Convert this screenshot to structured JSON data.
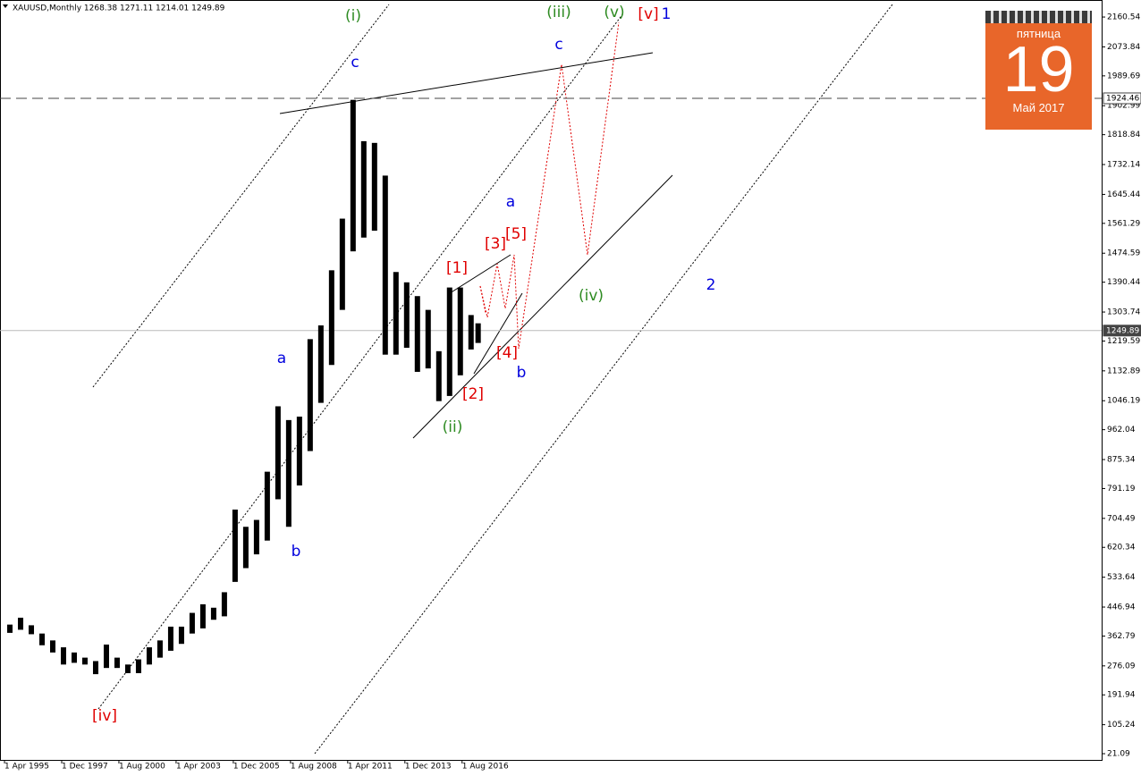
{
  "chart_data": {
    "type": "range",
    "title": "XAUUSD,Monthly  1268.38 1271.11 1214.01 1249.89",
    "x": [
      1995.5,
      1996.0,
      1996.5,
      1997.0,
      1997.5,
      1998.0,
      1998.5,
      1999.0,
      1999.5,
      2000.0,
      2000.5,
      2001.0,
      2001.5,
      2002.0,
      2002.5,
      2003.0,
      2003.5,
      2004.0,
      2004.5,
      2005.0,
      2005.5,
      2006.0,
      2006.5,
      2007.0,
      2007.5,
      2008.0,
      2008.5,
      2009.0,
      2009.5,
      2010.0,
      2010.5,
      2011.0,
      2011.5,
      2012.0,
      2012.5,
      2013.0,
      2013.5,
      2014.0,
      2014.5,
      2015.0,
      2015.5,
      2016.0,
      2016.5,
      2017.0,
      2017.33
    ],
    "high": [
      396,
      416,
      394,
      370,
      350,
      330,
      315,
      300,
      290,
      338,
      300,
      280,
      295,
      330,
      350,
      390,
      390,
      430,
      455,
      445,
      490,
      730,
      680,
      700,
      840,
      1030,
      990,
      1000,
      1225,
      1265,
      1425,
      1575,
      1920,
      1800,
      1795,
      1700,
      1420,
      1390,
      1350,
      1310,
      1190,
      1375,
      1375,
      1295,
      1271
    ],
    "low": [
      372,
      381,
      368,
      336,
      315,
      280,
      285,
      280,
      252,
      270,
      270,
      255,
      255,
      280,
      300,
      320,
      340,
      370,
      385,
      410,
      420,
      520,
      560,
      600,
      640,
      760,
      680,
      800,
      900,
      1040,
      1150,
      1310,
      1480,
      1520,
      1540,
      1180,
      1180,
      1200,
      1130,
      1140,
      1045,
      1060,
      1120,
      1195,
      1214
    ],
    "color": "#000000",
    "xlim": [
      1995.04,
      2046.4
    ],
    "xticks": [
      {
        "value": 1995.25,
        "label": "1 Apr 1995"
      },
      {
        "value": 1997.917,
        "label": "1 Dec 1997"
      },
      {
        "value": 2000.583,
        "label": "1 Aug 2000"
      },
      {
        "value": 2003.25,
        "label": "1 Apr 2003"
      },
      {
        "value": 2005.917,
        "label": "1 Dec 2005"
      },
      {
        "value": 2008.583,
        "label": "1 Aug 2008"
      },
      {
        "value": 2011.25,
        "label": "1 Apr 2011"
      },
      {
        "value": 2013.917,
        "label": "1 Dec 2013"
      },
      {
        "value": 2016.583,
        "label": "1 Aug 2016"
      }
    ],
    "ylim": [
      3,
      2210
    ],
    "yticks": [
      2160.54,
      2073.84,
      1989.69,
      1902.99,
      1818.84,
      1732.14,
      1645.44,
      1561.29,
      1474.59,
      1390.44,
      1303.74,
      1219.59,
      1132.89,
      1046.19,
      962.04,
      875.34,
      791.19,
      704.49,
      620.34,
      533.64,
      446.94,
      362.79,
      276.09,
      191.94,
      105.24,
      21.09
    ],
    "hlines": [
      {
        "value": 1924.46,
        "dashed": true
      },
      {
        "value": 1249.89,
        "dashed": false
      }
    ],
    "annotations": [
      {
        "text": "(i)",
        "color": "#2e8b22"
      },
      {
        "text": "c",
        "color": "#0000dd"
      },
      {
        "text": "(iii)",
        "color": "#2e8b22"
      },
      {
        "text": "(v)",
        "color": "#2e8b22"
      },
      {
        "text": "[v]",
        "color": "#e00000"
      },
      {
        "text": "1",
        "color": "#0000dd"
      },
      {
        "text": "c",
        "color": "#0000dd"
      },
      {
        "text": "a",
        "color": "#0000dd"
      },
      {
        "text": "[3]",
        "color": "#e00000"
      },
      {
        "text": "[5]",
        "color": "#e00000"
      },
      {
        "text": "[1]",
        "color": "#e00000"
      },
      {
        "text": "(iv)",
        "color": "#2e8b22"
      },
      {
        "text": "2",
        "color": "#0000dd"
      },
      {
        "text": "a",
        "color": "#0000dd"
      },
      {
        "text": "[4]",
        "color": "#e00000"
      },
      {
        "text": "b",
        "color": "#0000dd"
      },
      {
        "text": "[2]",
        "color": "#e00000"
      },
      {
        "text": "(ii)",
        "color": "#2e8b22"
      },
      {
        "text": "b",
        "color": "#0000dd"
      },
      {
        "text": "[iv]",
        "color": "#e00000"
      }
    ]
  },
  "calendar_widget": {
    "weekday": "пятница",
    "day": "19",
    "month_year": "Май 2017"
  }
}
